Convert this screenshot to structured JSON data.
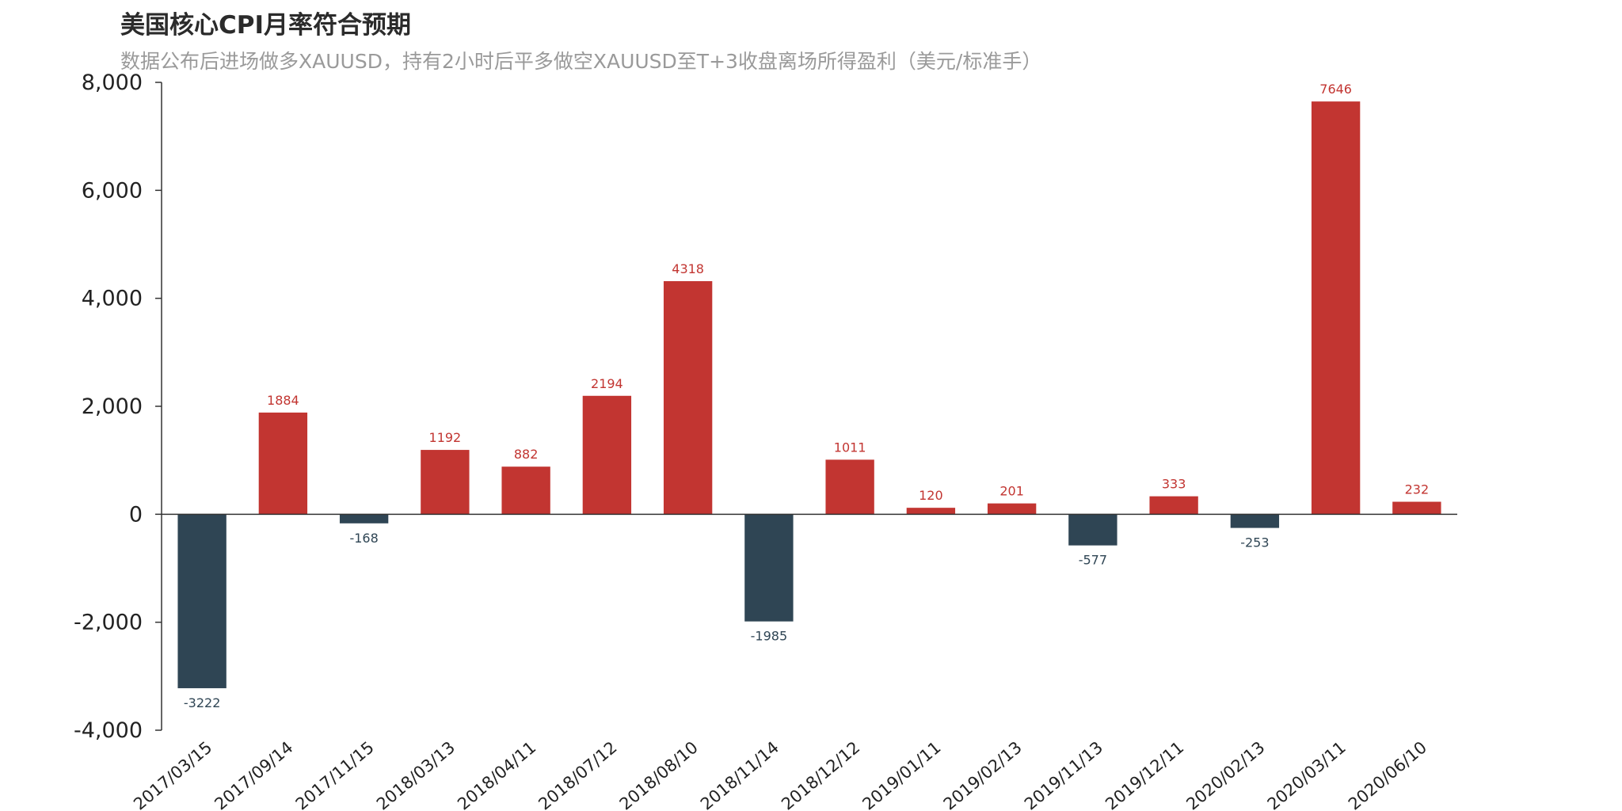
{
  "chart_data": {
    "type": "bar",
    "title": "美国核心CPI月率符合预期",
    "subtitle": "数据公布后进场做多XAUUSD，持有2小时后平多做空XAUUSD至T+3收盘离场所得盈利（美元/标准手）",
    "categories": [
      "2017/03/15",
      "2017/09/14",
      "2017/11/15",
      "2018/03/13",
      "2018/04/11",
      "2018/07/12",
      "2018/08/10",
      "2018/11/14",
      "2018/12/12",
      "2019/01/11",
      "2019/02/13",
      "2019/11/13",
      "2019/12/11",
      "2020/02/13",
      "2020/03/11",
      "2020/06/10"
    ],
    "values": [
      -3222,
      1884,
      -168,
      1192,
      882,
      2194,
      4318,
      -1985,
      1011,
      120,
      201,
      -577,
      333,
      -253,
      7646,
      232
    ],
    "ylim": [
      -4000,
      8000
    ],
    "yticks": [
      -4000,
      -2000,
      0,
      2000,
      4000,
      6000,
      8000
    ],
    "ytick_labels": [
      "-4,000",
      "-2,000",
      "0",
      "2,000",
      "4,000",
      "6,000",
      "8,000"
    ],
    "grid": false,
    "legend": "none",
    "colors": {
      "positive": "#c23531",
      "negative": "#2f4554",
      "axis": "#333333",
      "label_positive": "#c23531",
      "label_negative": "#2f4554"
    }
  }
}
